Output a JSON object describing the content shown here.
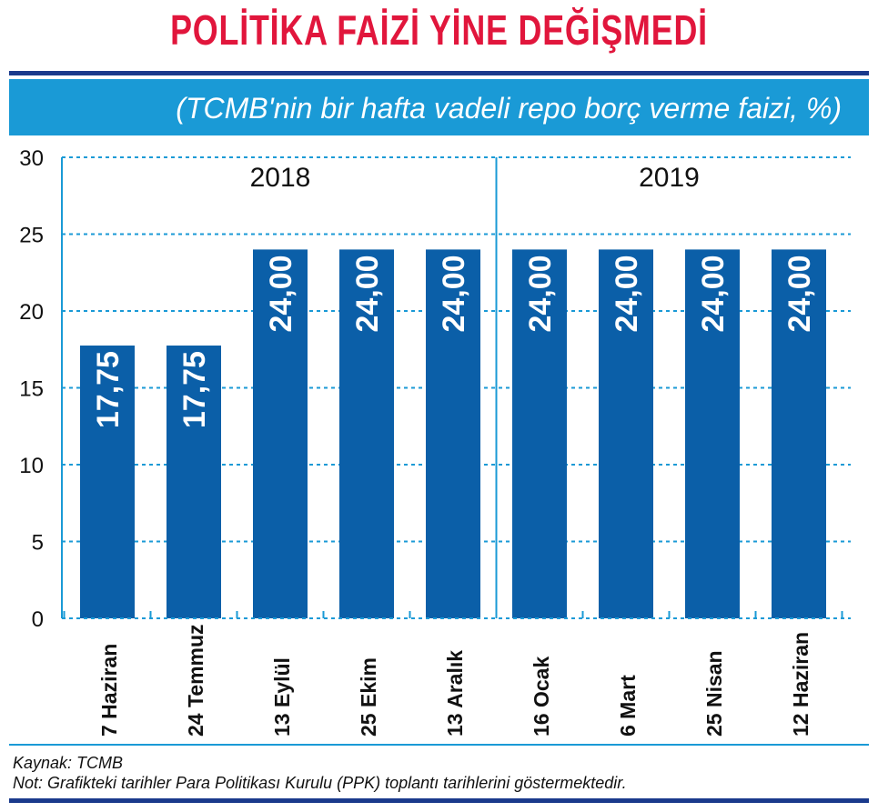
{
  "title": "POLİTİKA FAİZİ YİNE DEĞİŞMEDİ",
  "subtitle": "(TCMB'nin bir hafta vadeli repo borç verme faizi, %)",
  "source": "Kaynak: TCMB",
  "note": "Not: Grafikteki tarihler Para Politikası Kurulu (PPK) toplantı tarihlerini göstermektedir.",
  "colors": {
    "title": "#e1163c",
    "band": "#1a9ad6",
    "bar": "#0b5fa8",
    "rule": "#1a3a8c"
  },
  "chart_data": {
    "type": "bar",
    "categories": [
      "7 Haziran",
      "24 Temmuz",
      "13 Eylül",
      "25 Ekim",
      "13 Aralık",
      "16 Ocak",
      "6 Mart",
      "25 Nisan",
      "12 Haziran"
    ],
    "values": [
      17.75,
      17.75,
      24.0,
      24.0,
      24.0,
      24.0,
      24.0,
      24.0,
      24.0
    ],
    "value_labels": [
      "17,75",
      "17,75",
      "24,00",
      "24,00",
      "24,00",
      "24,00",
      "24,00",
      "24,00",
      "24,00"
    ],
    "year_groups": [
      {
        "label": "2018",
        "count": 5
      },
      {
        "label": "2019",
        "count": 4
      }
    ],
    "yticks": [
      "0",
      "5",
      "10",
      "15",
      "20",
      "25",
      "30"
    ],
    "ylim": [
      0,
      30
    ],
    "grid": "dashed horizontal"
  }
}
